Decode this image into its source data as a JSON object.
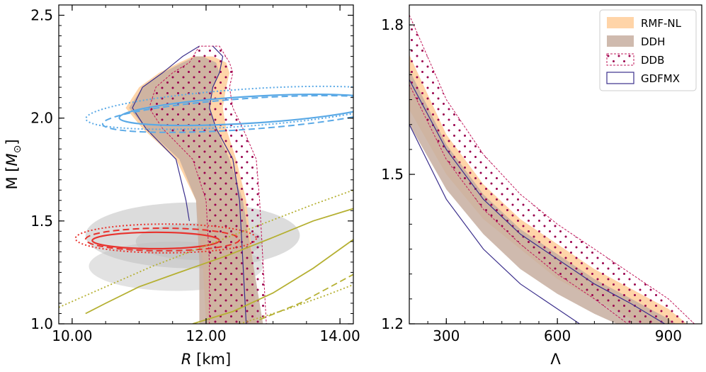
{
  "chart_data": [
    {
      "type": "line",
      "panel": "left",
      "xlabel_prefix": "R",
      "xlabel_unit": "[km]",
      "ylabel_prefix": "M [",
      "ylabel_unit": "M",
      "ylabel_sub": "⊙",
      "ylabel_suffix": "]",
      "xlim": [
        9.8,
        14.2
      ],
      "ylim": [
        1.0,
        2.55
      ],
      "xticks": [
        10.0,
        12.0,
        14.0
      ],
      "xtick_labels": [
        "10.00",
        "12.00",
        "14.00"
      ],
      "yticks": [
        1.0,
        1.5,
        2.0,
        2.5
      ],
      "ytick_labels": [
        "1.0",
        "1.5",
        "2.0",
        "2.5"
      ],
      "bands": [
        {
          "name": "RMF-NL",
          "color": "#ffcc99",
          "left": [
            [
              12.0,
              1.0
            ],
            [
              11.95,
              1.3
            ],
            [
              11.85,
              1.6
            ],
            [
              11.55,
              1.8
            ],
            [
              11.05,
              1.95
            ],
            [
              10.8,
              2.05
            ],
            [
              11.0,
              2.15
            ],
            [
              11.3,
              2.22
            ],
            [
              11.6,
              2.27
            ],
            [
              11.8,
              2.3
            ]
          ],
          "right": [
            [
              12.75,
              1.0
            ],
            [
              12.7,
              1.3
            ],
            [
              12.6,
              1.6
            ],
            [
              12.45,
              1.8
            ],
            [
              12.3,
              1.95
            ],
            [
              12.25,
              2.05
            ],
            [
              12.3,
              2.15
            ],
            [
              12.35,
              2.22
            ],
            [
              12.3,
              2.27
            ],
            [
              12.1,
              2.3
            ]
          ]
        },
        {
          "name": "DDH",
          "color": "#c7aea0",
          "left": [
            [
              11.9,
              1.0
            ],
            [
              11.9,
              1.3
            ],
            [
              11.85,
              1.6
            ],
            [
              11.6,
              1.8
            ],
            [
              11.1,
              1.95
            ],
            [
              10.85,
              2.05
            ],
            [
              11.05,
              2.15
            ],
            [
              11.35,
              2.22
            ],
            [
              11.65,
              2.27
            ],
            [
              11.85,
              2.3
            ]
          ],
          "right": [
            [
              12.85,
              1.0
            ],
            [
              12.7,
              1.3
            ],
            [
              12.55,
              1.6
            ],
            [
              12.35,
              1.8
            ],
            [
              12.15,
              1.95
            ],
            [
              12.05,
              2.05
            ],
            [
              12.1,
              2.15
            ],
            [
              12.2,
              2.22
            ],
            [
              12.15,
              2.27
            ],
            [
              11.95,
              2.3
            ]
          ]
        },
        {
          "name": "DDB",
          "color": "#99004d",
          "left": [
            [
              12.05,
              1.0
            ],
            [
              12.05,
              1.3
            ],
            [
              12.0,
              1.6
            ],
            [
              11.8,
              1.8
            ],
            [
              11.35,
              1.95
            ],
            [
              11.15,
              2.05
            ],
            [
              11.25,
              2.15
            ],
            [
              11.5,
              2.22
            ],
            [
              11.75,
              2.27
            ],
            [
              11.9,
              2.35
            ]
          ],
          "right": [
            [
              12.9,
              1.0
            ],
            [
              12.85,
              1.3
            ],
            [
              12.8,
              1.6
            ],
            [
              12.75,
              1.8
            ],
            [
              12.55,
              1.95
            ],
            [
              12.4,
              2.05
            ],
            [
              12.35,
              2.15
            ],
            [
              12.4,
              2.22
            ],
            [
              12.35,
              2.27
            ],
            [
              12.2,
              2.35
            ]
          ]
        },
        {
          "name": "GDFMX",
          "color": "#3b2f8c",
          "left": [
            [
              11.75,
              1.5
            ],
            [
              11.7,
              1.6
            ],
            [
              11.55,
              1.8
            ],
            [
              11.1,
              1.95
            ],
            [
              10.9,
              2.05
            ],
            [
              11.05,
              2.15
            ],
            [
              11.35,
              2.22
            ],
            [
              11.65,
              2.3
            ],
            [
              11.9,
              2.35
            ]
          ],
          "right": [
            [
              12.6,
              1.0
            ],
            [
              12.55,
              1.3
            ],
            [
              12.5,
              1.6
            ],
            [
              12.4,
              1.8
            ],
            [
              12.15,
              1.95
            ],
            [
              12.05,
              2.05
            ],
            [
              12.1,
              2.15
            ],
            [
              12.2,
              2.22
            ],
            [
              12.25,
              2.3
            ],
            [
              12.1,
              2.35
            ]
          ]
        }
      ],
      "gray_regions": [
        {
          "cx": 11.8,
          "cy": 1.43,
          "rx": 1.6,
          "ry": 0.16,
          "rot": 0,
          "opacity": 0.55
        },
        {
          "cx": 11.55,
          "cy": 1.28,
          "rx": 1.3,
          "ry": 0.12,
          "rot": 0,
          "opacity": 0.45
        },
        {
          "cx": 11.9,
          "cy": 1.4,
          "rx": 0.95,
          "ry": 0.09,
          "rot": 0,
          "opacity": 0.55
        }
      ],
      "ellipses": [
        {
          "color": "#5aa9e6",
          "dash": "",
          "cx": 12.65,
          "cy": 2.04,
          "rx": 1.95,
          "ry": 0.065,
          "rot": 3.5,
          "width": 2.2
        },
        {
          "color": "#5aa9e6",
          "dash": "9,5",
          "cx": 12.6,
          "cy": 2.02,
          "rx": 2.15,
          "ry": 0.075,
          "rot": 4,
          "width": 2.0
        },
        {
          "color": "#5aa9e6",
          "dash": "2,3",
          "cx": 12.55,
          "cy": 2.05,
          "rx": 2.35,
          "ry": 0.09,
          "rot": 4,
          "width": 2.0
        },
        {
          "color": "#e8322d",
          "dash": "",
          "cx": 11.25,
          "cy": 1.405,
          "rx": 0.95,
          "ry": 0.04,
          "rot": 0,
          "width": 2.2
        },
        {
          "color": "#e8322d",
          "dash": "9,5",
          "cx": 11.35,
          "cy": 1.41,
          "rx": 1.15,
          "ry": 0.055,
          "rot": 0,
          "width": 2.0
        },
        {
          "color": "#e8322d",
          "dash": "2,3",
          "cx": 11.4,
          "cy": 1.415,
          "rx": 1.35,
          "ry": 0.07,
          "rot": 0,
          "width": 2.0
        }
      ],
      "olive_curves": [
        {
          "dash": "",
          "points": [
            [
              10.2,
              1.05
            ],
            [
              10.5,
              1.1
            ],
            [
              11.0,
              1.18
            ],
            [
              11.6,
              1.25
            ],
            [
              12.3,
              1.33
            ],
            [
              13.0,
              1.42
            ],
            [
              13.6,
              1.5
            ],
            [
              14.2,
              1.56
            ]
          ]
        },
        {
          "dash": "",
          "points": [
            [
              11.8,
              1.0
            ],
            [
              12.4,
              1.06
            ],
            [
              13.0,
              1.15
            ],
            [
              13.6,
              1.27
            ],
            [
              14.2,
              1.41
            ]
          ]
        },
        {
          "dash": "9,5",
          "points": [
            [
              12.8,
              1.02
            ],
            [
              13.4,
              1.1
            ],
            [
              14.2,
              1.24
            ]
          ]
        },
        {
          "dash": "2,3",
          "points": [
            [
              9.8,
              1.08
            ],
            [
              10.5,
              1.18
            ],
            [
              11.2,
              1.28
            ],
            [
              12.0,
              1.38
            ],
            [
              12.8,
              1.48
            ],
            [
              13.6,
              1.58
            ],
            [
              14.2,
              1.65
            ]
          ]
        },
        {
          "dash": "2,3",
          "points": [
            [
              12.5,
              1.0
            ],
            [
              13.2,
              1.07
            ],
            [
              13.8,
              1.14
            ],
            [
              14.2,
              1.19
            ]
          ]
        }
      ]
    },
    {
      "type": "line",
      "panel": "right",
      "xlabel": "Λ",
      "xlim": [
        200,
        990
      ],
      "ylim": [
        1.2,
        1.84
      ],
      "xticks": [
        300,
        600,
        900
      ],
      "xtick_labels": [
        "300",
        "600",
        "900"
      ],
      "yticks": [
        1.2,
        1.5,
        1.8
      ],
      "ytick_labels": [
        "1.2",
        "1.5",
        "1.8"
      ],
      "bands": [
        {
          "name": "RMF-NL",
          "color": "#ffcc99",
          "upper": [
            [
              200,
              1.74
            ],
            [
              300,
              1.58
            ],
            [
              400,
              1.48
            ],
            [
              500,
              1.41
            ],
            [
              600,
              1.36
            ],
            [
              700,
              1.31
            ],
            [
              800,
              1.27
            ],
            [
              900,
              1.23
            ],
            [
              950,
              1.2
            ]
          ],
          "lower": [
            [
              200,
              1.63
            ],
            [
              300,
              1.5
            ],
            [
              400,
              1.41
            ],
            [
              500,
              1.35
            ],
            [
              600,
              1.29
            ],
            [
              700,
              1.25
            ],
            [
              800,
              1.21
            ],
            [
              830,
              1.2
            ]
          ]
        },
        {
          "name": "DDH",
          "color": "#c7aea0",
          "upper": [
            [
              200,
              1.71
            ],
            [
              300,
              1.56
            ],
            [
              400,
              1.46
            ],
            [
              500,
              1.39
            ],
            [
              600,
              1.34
            ],
            [
              700,
              1.29
            ],
            [
              800,
              1.25
            ],
            [
              900,
              1.21
            ],
            [
              920,
              1.2
            ]
          ],
          "lower": [
            [
              200,
              1.6
            ],
            [
              300,
              1.47
            ],
            [
              400,
              1.38
            ],
            [
              500,
              1.31
            ],
            [
              600,
              1.26
            ],
            [
              700,
              1.22
            ],
            [
              760,
              1.2
            ]
          ]
        },
        {
          "name": "DDB",
          "color": "#99004d",
          "upper": [
            [
              200,
              1.82
            ],
            [
              300,
              1.65
            ],
            [
              400,
              1.54
            ],
            [
              500,
              1.46
            ],
            [
              600,
              1.4
            ],
            [
              700,
              1.35
            ],
            [
              800,
              1.3
            ],
            [
              900,
              1.25
            ],
            [
              970,
              1.2
            ]
          ],
          "lower": [
            [
              200,
              1.68
            ],
            [
              300,
              1.53
            ],
            [
              400,
              1.43
            ],
            [
              500,
              1.36
            ],
            [
              600,
              1.3
            ],
            [
              700,
              1.25
            ],
            [
              790,
              1.2
            ]
          ]
        },
        {
          "name": "GDFMX",
          "color": "#3b2f8c",
          "upper": [
            [
              200,
              1.69
            ],
            [
              300,
              1.55
            ],
            [
              400,
              1.45
            ],
            [
              500,
              1.38
            ],
            [
              600,
              1.33
            ],
            [
              700,
              1.28
            ],
            [
              800,
              1.24
            ],
            [
              890,
              1.2
            ]
          ],
          "lower": [
            [
              200,
              1.6
            ],
            [
              300,
              1.45
            ],
            [
              400,
              1.35
            ],
            [
              500,
              1.28
            ],
            [
              600,
              1.23
            ],
            [
              660,
              1.2
            ]
          ]
        }
      ],
      "legend": {
        "position": "top-right",
        "entries": [
          {
            "label": "RMF-NL",
            "style": "fill",
            "color": "#ffcc99"
          },
          {
            "label": "DDH",
            "style": "fill",
            "color": "#c7aea0"
          },
          {
            "label": "DDB",
            "style": "dots",
            "color": "#99004d"
          },
          {
            "label": "GDFMX",
            "style": "line",
            "color": "#3b2f8c"
          }
        ]
      }
    }
  ]
}
